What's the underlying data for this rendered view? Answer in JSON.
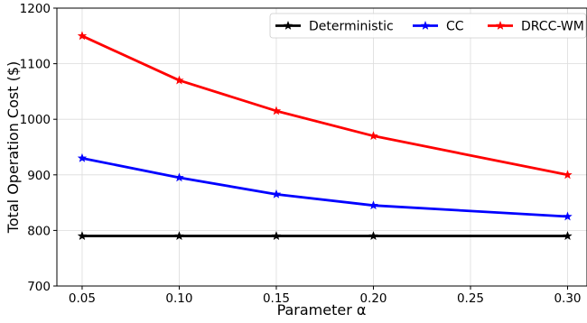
{
  "chart_data": {
    "type": "line",
    "title": "",
    "xlabel": "Parameter α",
    "ylabel": "Total Operation Cost ($)",
    "x": [
      0.05,
      0.1,
      0.15,
      0.2,
      0.3
    ],
    "xlim": [
      0.037,
      0.31
    ],
    "ylim": [
      700,
      1200
    ],
    "x_ticks": [
      0.05,
      0.1,
      0.15,
      0.2,
      0.25,
      0.3
    ],
    "x_tick_labels": [
      "0.05",
      "0.10",
      "0.15",
      "0.20",
      "0.25",
      "0.30"
    ],
    "y_ticks": [
      700,
      800,
      900,
      1000,
      1100,
      1200
    ],
    "y_tick_labels": [
      "700",
      "800",
      "900",
      "1000",
      "1100",
      "1200"
    ],
    "grid": true,
    "legend_position": "top-right",
    "legend_columns": 3,
    "series": [
      {
        "name": "Deterministic",
        "color": "#000000",
        "marker": "star",
        "values": [
          790,
          790,
          790,
          790,
          790
        ]
      },
      {
        "name": "CC",
        "color": "#0000ff",
        "marker": "star",
        "values": [
          930,
          895,
          865,
          845,
          825
        ]
      },
      {
        "name": "DRCC-WM",
        "color": "#ff0000",
        "marker": "star",
        "values": [
          1150,
          1070,
          1015,
          970,
          900
        ]
      }
    ]
  }
}
